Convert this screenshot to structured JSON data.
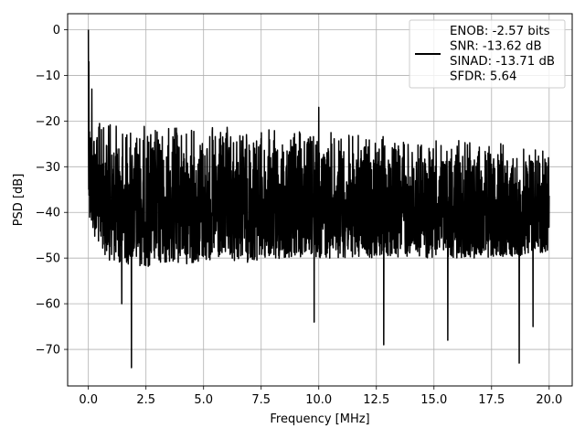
{
  "chart_data": {
    "type": "line",
    "title": "",
    "xlabel": "Frequency [MHz]",
    "ylabel": "PSD [dB]",
    "xlim": [
      -0.9,
      21.0
    ],
    "ylim": [
      -78,
      3.5
    ],
    "xticks": [
      0.0,
      2.5,
      5.0,
      7.5,
      10.0,
      12.5,
      15.0,
      17.5,
      20.0
    ],
    "xtick_labels": [
      "0.0",
      "2.5",
      "5.0",
      "7.5",
      "10.0",
      "12.5",
      "15.0",
      "17.5",
      "20.0"
    ],
    "yticks": [
      0,
      -10,
      -20,
      -30,
      -40,
      -50,
      -60,
      -70
    ],
    "ytick_labels": [
      "0",
      "−10",
      "−20",
      "−30",
      "−40",
      "−50",
      "−60",
      "−70"
    ],
    "grid": true,
    "legend_position": "top-right",
    "series": [
      {
        "name": "ENOB: -2.57 bits\nSNR: -13.62 dB\nSINAD: -13.71 dB\nSFDR: 5.64",
        "color": "#000000",
        "description": "Noise-like PSD trace spanning 0–20 MHz",
        "envelope": {
          "x": [
            0.0,
            0.5,
            1.0,
            2.5,
            5.0,
            7.5,
            10.0,
            12.5,
            15.0,
            17.5,
            20.0
          ],
          "upper": [
            -13,
            -20,
            -20,
            -20.5,
            -21,
            -21.5,
            -22,
            -23,
            -24,
            -24.5,
            -24
          ],
          "lower": [
            -43,
            -48,
            -51,
            -52,
            -51,
            -51,
            -50,
            -50,
            -50,
            -50,
            -49
          ]
        },
        "peaks": [
          {
            "x": 0.0,
            "y": 0.0
          },
          {
            "x": 0.02,
            "y": -7
          },
          {
            "x": 0.15,
            "y": -13
          },
          {
            "x": 10.0,
            "y": -17
          }
        ],
        "dips": [
          {
            "x": 1.45,
            "y": -60
          },
          {
            "x": 1.87,
            "y": -74
          },
          {
            "x": 9.8,
            "y": -64
          },
          {
            "x": 12.82,
            "y": -69
          },
          {
            "x": 15.6,
            "y": -68
          },
          {
            "x": 18.7,
            "y": -73
          },
          {
            "x": 19.3,
            "y": -65
          }
        ]
      }
    ]
  },
  "legend": {
    "lines": [
      "ENOB: -2.57 bits",
      "SNR: -13.62 dB",
      "SINAD: -13.71 dB",
      "SFDR: 5.64"
    ]
  }
}
